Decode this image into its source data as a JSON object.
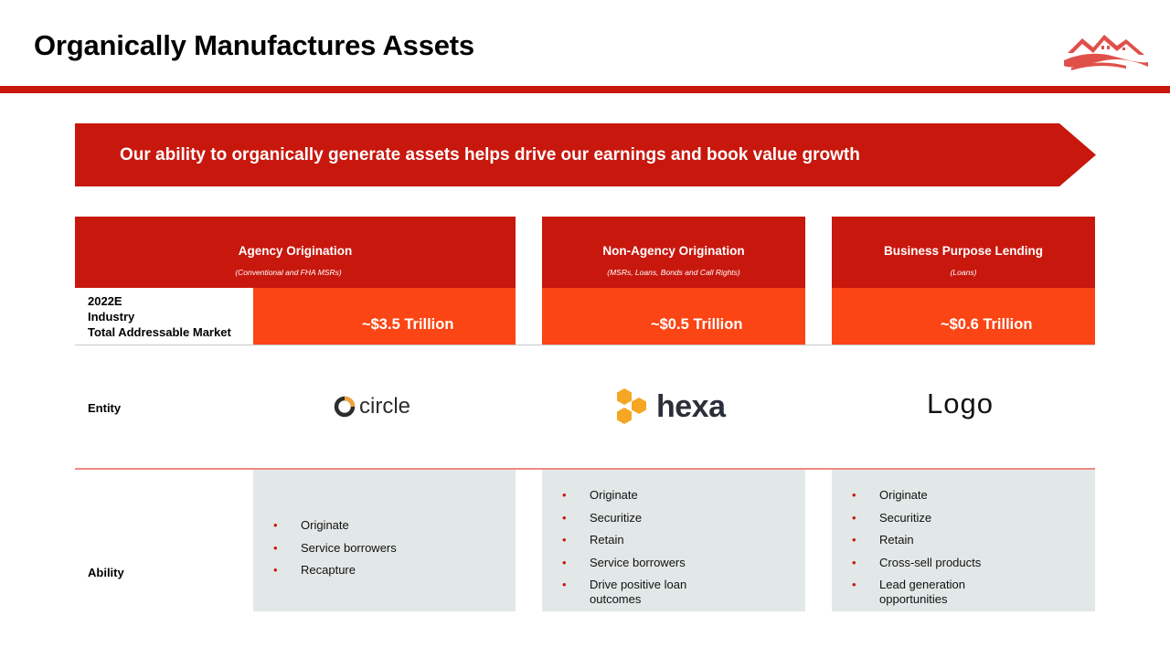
{
  "title": "Organically Manufactures Assets",
  "brand_colors": {
    "red": "#c8170d",
    "orange": "#fb4514",
    "panel": "#e2e8e7"
  },
  "banner": {
    "text": "Our ability to organically generate assets helps drive our earnings and book value growth"
  },
  "row_labels": {
    "tam": [
      "2022E",
      "Industry",
      "Total Addressable Market"
    ],
    "entity": "Entity",
    "ability": "Ability"
  },
  "columns": [
    {
      "heading": "Agency Origination",
      "subheading": "(Conventional and FHA MSRs)",
      "tam": "~$3.5 Trillion",
      "entity": "circle",
      "abilities": [
        "Originate",
        "Service borrowers",
        "Recapture"
      ]
    },
    {
      "heading": "Non-Agency Origination",
      "subheading": "(MSRs, Loans, Bonds and Call Rights)",
      "tam": "~$0.5 Trillion",
      "entity": "hexa",
      "abilities": [
        "Originate",
        "Securitize",
        "Retain",
        "Service borrowers",
        "Drive positive loan outcomes"
      ]
    },
    {
      "heading": "Business Purpose Lending",
      "subheading": "(Loans)",
      "tam": "~$0.6 Trillion",
      "entity": "Logo",
      "abilities": [
        "Originate",
        "Securitize",
        "Retain",
        "Cross-sell products",
        "Lead generation opportunities"
      ]
    }
  ]
}
